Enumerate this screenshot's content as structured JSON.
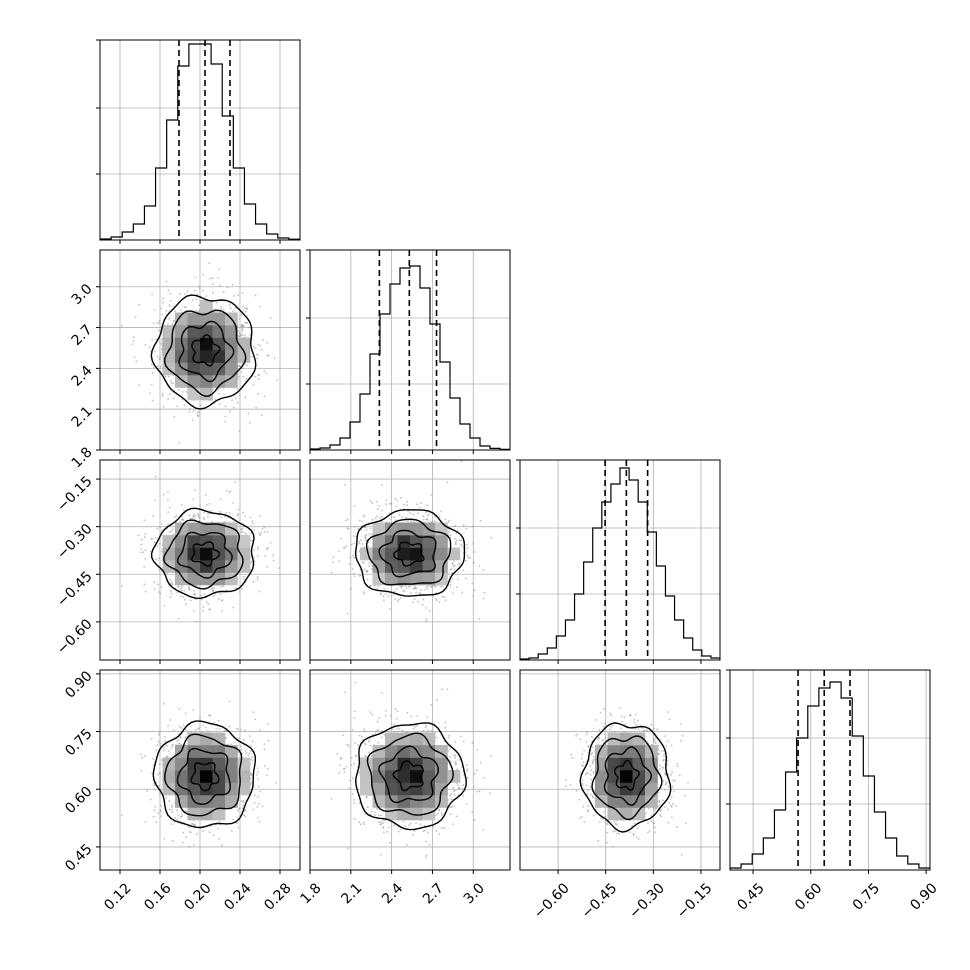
{
  "chart_data": {
    "type": "corner",
    "grid": true,
    "parameters": [
      {
        "range": [
          0.1,
          0.3
        ],
        "ticks": [
          0.12,
          0.16,
          0.2,
          0.24,
          0.28
        ],
        "tick_labels": [
          "0.12",
          "0.16",
          "0.20",
          "0.24",
          "0.28"
        ],
        "median": 0.205,
        "quantiles": [
          0.179,
          0.205,
          0.23
        ],
        "sigma": 0.025,
        "histogram": [
          0.005,
          0.015,
          0.04,
          0.08,
          0.17,
          0.36,
          0.6,
          0.87,
          0.98,
          0.98,
          0.88,
          0.62,
          0.36,
          0.18,
          0.08,
          0.03,
          0.01,
          0.004
        ]
      },
      {
        "range": [
          1.8,
          3.27
        ],
        "ticks": [
          1.8,
          2.1,
          2.4,
          2.7,
          3.0
        ],
        "tick_labels": [
          "1.8",
          "2.1",
          "2.4",
          "2.7",
          "3.0"
        ],
        "median": 2.53,
        "quantiles": [
          2.31,
          2.53,
          2.73
        ],
        "sigma": 0.2,
        "histogram": [
          0.005,
          0.01,
          0.025,
          0.06,
          0.14,
          0.28,
          0.48,
          0.68,
          0.83,
          0.91,
          0.92,
          0.81,
          0.63,
          0.44,
          0.26,
          0.13,
          0.06,
          0.02,
          0.008,
          0.003
        ]
      },
      {
        "range": [
          -0.72,
          -0.09
        ],
        "ticks": [
          -0.6,
          -0.45,
          -0.3,
          -0.15
        ],
        "tick_labels": [
          "−0.60",
          "−0.45",
          "−0.30",
          "−0.15"
        ],
        "median": -0.385,
        "quantiles": [
          -0.452,
          -0.385,
          -0.318
        ],
        "sigma": 0.068,
        "histogram": [
          0.005,
          0.01,
          0.03,
          0.06,
          0.12,
          0.2,
          0.33,
          0.49,
          0.66,
          0.79,
          0.88,
          0.96,
          0.9,
          0.79,
          0.64,
          0.47,
          0.32,
          0.2,
          0.11,
          0.05,
          0.02,
          0.01
        ]
      },
      {
        "range": [
          0.39,
          0.91
        ],
        "ticks": [
          0.45,
          0.6,
          0.75,
          0.9
        ],
        "tick_labels": [
          "0.45",
          "0.60",
          "0.75",
          "0.90"
        ],
        "median": 0.635,
        "quantiles": [
          0.567,
          0.635,
          0.702
        ],
        "sigma": 0.068,
        "histogram": [
          0.01,
          0.03,
          0.08,
          0.16,
          0.3,
          0.49,
          0.66,
          0.82,
          0.91,
          0.94,
          0.86,
          0.67,
          0.47,
          0.29,
          0.16,
          0.07,
          0.03,
          0.01
        ]
      }
    ]
  }
}
